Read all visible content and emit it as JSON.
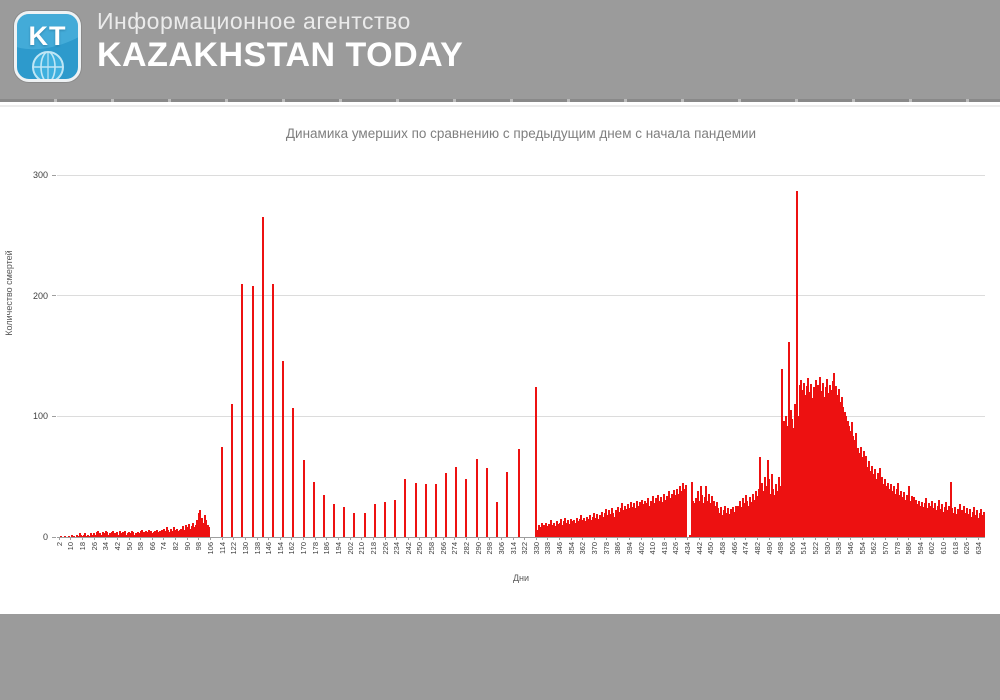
{
  "header": {
    "logo_text": "KT",
    "agency_line": "Информационное агентство",
    "brand": "KAZAKHSTAN TODAY"
  },
  "colors": {
    "header_bg": "#9b9b9b",
    "footer_bg": "#9b9b9b",
    "bar": "#ed1111",
    "logo_blue": "#2d9acc",
    "title_text": "#7f7f7f"
  },
  "chart_data": {
    "type": "bar",
    "title": "Динамика умерших по сравнению с предыдущим днем с начала пандемии",
    "xlabel": "Дни",
    "ylabel": "Количество смертей",
    "ylim": [
      0,
      300
    ],
    "yticks": [
      0,
      100,
      200,
      300
    ],
    "grid": "horizontal",
    "legend": "none",
    "x_domain": [
      1,
      638
    ],
    "x_tick_labels": [
      2,
      10,
      18,
      26,
      34,
      42,
      50,
      58,
      66,
      74,
      82,
      90,
      98,
      106,
      114,
      122,
      130,
      138,
      146,
      154,
      162,
      170,
      178,
      186,
      194,
      202,
      210,
      218,
      226,
      234,
      242,
      250,
      258,
      266,
      274,
      282,
      290,
      298,
      306,
      314,
      322,
      330,
      338,
      346,
      354,
      362,
      370,
      378,
      386,
      394,
      402,
      410,
      418,
      426,
      434,
      442,
      450,
      458,
      466,
      474,
      482,
      490,
      498,
      506,
      514,
      522,
      530,
      538,
      546,
      554,
      562,
      570,
      578,
      586,
      594,
      602,
      610,
      618,
      626,
      634
    ],
    "values": [
      0,
      0,
      1,
      0,
      0,
      1,
      0,
      0,
      1,
      0,
      2,
      1,
      0,
      2,
      1,
      3,
      2,
      1,
      2,
      3,
      1,
      2,
      1,
      3,
      2,
      3,
      2,
      4,
      5,
      3,
      2,
      4,
      3,
      5,
      4,
      2,
      3,
      4,
      5,
      3,
      3,
      4,
      2,
      5,
      3,
      4,
      5,
      2,
      3,
      4,
      3,
      5,
      4,
      2,
      3,
      4,
      3,
      5,
      6,
      4,
      3,
      5,
      4,
      6,
      5,
      3,
      4,
      5,
      6,
      4,
      5,
      4,
      6,
      7,
      5,
      8,
      6,
      4,
      7,
      5,
      8,
      6,
      7,
      5,
      6,
      7,
      9,
      6,
      10,
      8,
      11,
      7,
      9,
      12,
      8,
      10,
      14,
      20,
      22,
      16,
      12,
      18,
      14,
      10,
      8,
      0,
      0,
      0,
      0,
      0,
      0,
      0,
      0,
      75,
      0,
      0,
      0,
      0,
      0,
      0,
      110,
      0,
      0,
      0,
      0,
      0,
      0,
      210,
      0,
      0,
      0,
      0,
      0,
      0,
      208,
      0,
      0,
      0,
      0,
      0,
      0,
      265,
      0,
      0,
      0,
      0,
      0,
      0,
      210,
      0,
      0,
      0,
      0,
      0,
      0,
      146,
      0,
      0,
      0,
      0,
      0,
      0,
      107,
      0,
      0,
      0,
      0,
      0,
      0,
      64,
      0,
      0,
      0,
      0,
      0,
      0,
      46,
      0,
      0,
      0,
      0,
      0,
      0,
      35,
      0,
      0,
      0,
      0,
      0,
      0,
      27,
      0,
      0,
      0,
      0,
      0,
      0,
      25,
      0,
      0,
      0,
      0,
      0,
      0,
      20,
      0,
      0,
      0,
      0,
      0,
      0,
      20,
      0,
      0,
      0,
      0,
      0,
      0,
      27,
      0,
      0,
      0,
      0,
      0,
      0,
      29,
      0,
      0,
      0,
      0,
      0,
      0,
      31,
      0,
      0,
      0,
      0,
      0,
      0,
      48,
      0,
      0,
      0,
      0,
      0,
      0,
      45,
      0,
      0,
      0,
      0,
      0,
      0,
      44,
      0,
      0,
      0,
      0,
      0,
      0,
      44,
      0,
      0,
      0,
      0,
      0,
      0,
      53,
      0,
      0,
      0,
      0,
      0,
      0,
      58,
      0,
      0,
      0,
      0,
      0,
      0,
      48,
      0,
      0,
      0,
      0,
      0,
      0,
      65,
      0,
      0,
      0,
      0,
      0,
      0,
      57,
      0,
      0,
      0,
      0,
      0,
      0,
      29,
      0,
      0,
      0,
      0,
      0,
      0,
      54,
      0,
      0,
      0,
      0,
      0,
      0,
      0,
      73,
      0,
      0,
      0,
      0,
      0,
      0,
      0,
      0,
      0,
      0,
      0,
      124,
      6,
      10,
      8,
      12,
      10,
      8,
      12,
      9,
      11,
      14,
      10,
      12,
      9,
      13,
      11,
      12,
      15,
      10,
      13,
      16,
      12,
      14,
      11,
      15,
      13,
      14,
      12,
      16,
      13,
      15,
      18,
      14,
      16,
      13,
      17,
      15,
      18,
      14,
      17,
      20,
      16,
      19,
      15,
      18,
      21,
      17,
      20,
      23,
      18,
      22,
      19,
      24,
      20,
      17,
      22,
      25,
      21,
      24,
      28,
      22,
      26,
      23,
      27,
      24,
      29,
      25,
      28,
      24,
      30,
      26,
      29,
      25,
      31,
      27,
      30,
      28,
      32,
      26,
      30,
      34,
      28,
      32,
      29,
      35,
      30,
      33,
      29,
      36,
      31,
      34,
      38,
      32,
      36,
      33,
      39,
      35,
      40,
      36,
      42,
      38,
      45,
      40,
      43,
      0,
      0,
      2,
      46,
      30,
      28,
      32,
      38,
      30,
      42,
      35,
      28,
      33,
      42,
      30,
      36,
      28,
      34,
      30,
      26,
      29,
      24,
      20,
      25,
      18,
      22,
      26,
      20,
      24,
      19,
      23,
      25,
      21,
      26,
      22,
      26,
      30,
      25,
      32,
      28,
      35,
      30,
      26,
      33,
      29,
      36,
      31,
      38,
      34,
      40,
      66,
      45,
      38,
      50,
      42,
      64,
      48,
      36,
      52,
      40,
      35,
      44,
      38,
      50,
      42,
      139,
      96,
      88,
      100,
      92,
      162,
      105,
      98,
      90,
      110,
      287,
      100,
      126,
      130,
      122,
      128,
      118,
      125,
      132,
      120,
      127,
      115,
      124,
      130,
      118,
      126,
      133,
      121,
      128,
      116,
      124,
      131,
      119,
      126,
      122,
      129,
      136,
      125,
      118,
      123,
      112,
      116,
      108,
      104,
      100,
      96,
      92,
      88,
      95,
      84,
      80,
      86,
      74,
      70,
      75,
      66,
      71,
      62,
      67,
      58,
      63,
      55,
      59,
      52,
      56,
      48,
      53,
      57,
      46,
      50,
      44,
      48,
      42,
      45,
      40,
      44,
      38,
      42,
      36,
      40,
      45,
      35,
      38,
      33,
      37,
      31,
      35,
      42,
      30,
      34,
      29,
      33,
      31,
      27,
      30,
      26,
      29,
      25,
      28,
      32,
      24,
      28,
      26,
      30,
      24,
      28,
      22,
      26,
      31,
      23,
      27,
      21,
      25,
      29,
      22,
      26,
      46,
      24,
      20,
      25,
      19,
      23,
      27,
      18,
      22,
      26,
      20,
      24,
      19,
      23,
      17,
      21,
      25,
      18,
      22,
      16,
      20,
      23,
      18,
      21
    ]
  }
}
